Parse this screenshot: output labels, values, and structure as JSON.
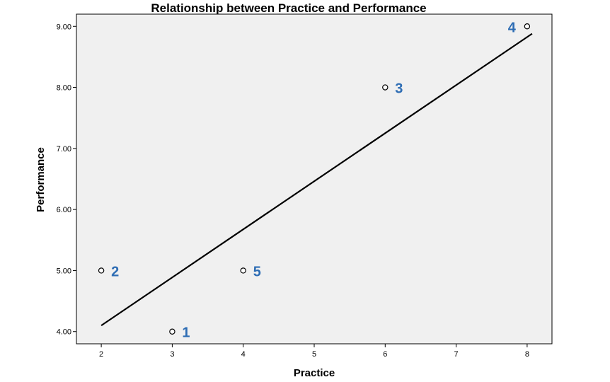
{
  "chart_data": {
    "type": "scatter",
    "title": "Relationship between Practice and Performance",
    "xlabel": "Practice",
    "ylabel": "Performance",
    "xlim": [
      1.65,
      8.35
    ],
    "ylim": [
      3.8,
      9.2
    ],
    "x_ticks": [
      2,
      3,
      4,
      5,
      6,
      7,
      8
    ],
    "x_tick_labels": [
      "2",
      "3",
      "4",
      "5",
      "6",
      "7",
      "8"
    ],
    "y_ticks": [
      4,
      5,
      6,
      7,
      8,
      9
    ],
    "y_tick_labels": [
      "4.00",
      "5.00",
      "6.00",
      "7.00",
      "8.00",
      "9.00"
    ],
    "grid": false,
    "legend": "none",
    "background_color": "#f0f0f0",
    "point_label_color": "#2e6db4",
    "series": [
      {
        "points": [
          {
            "x": 3,
            "y": 4,
            "label": "1"
          },
          {
            "x": 2,
            "y": 5,
            "label": "2"
          },
          {
            "x": 6,
            "y": 8,
            "label": "3"
          },
          {
            "x": 8,
            "y": 9,
            "label": "4"
          },
          {
            "x": 4,
            "y": 5,
            "label": "5"
          }
        ]
      }
    ],
    "fit_line": {
      "x": [
        2,
        8.07
      ],
      "y": [
        4.1,
        8.88
      ]
    }
  }
}
